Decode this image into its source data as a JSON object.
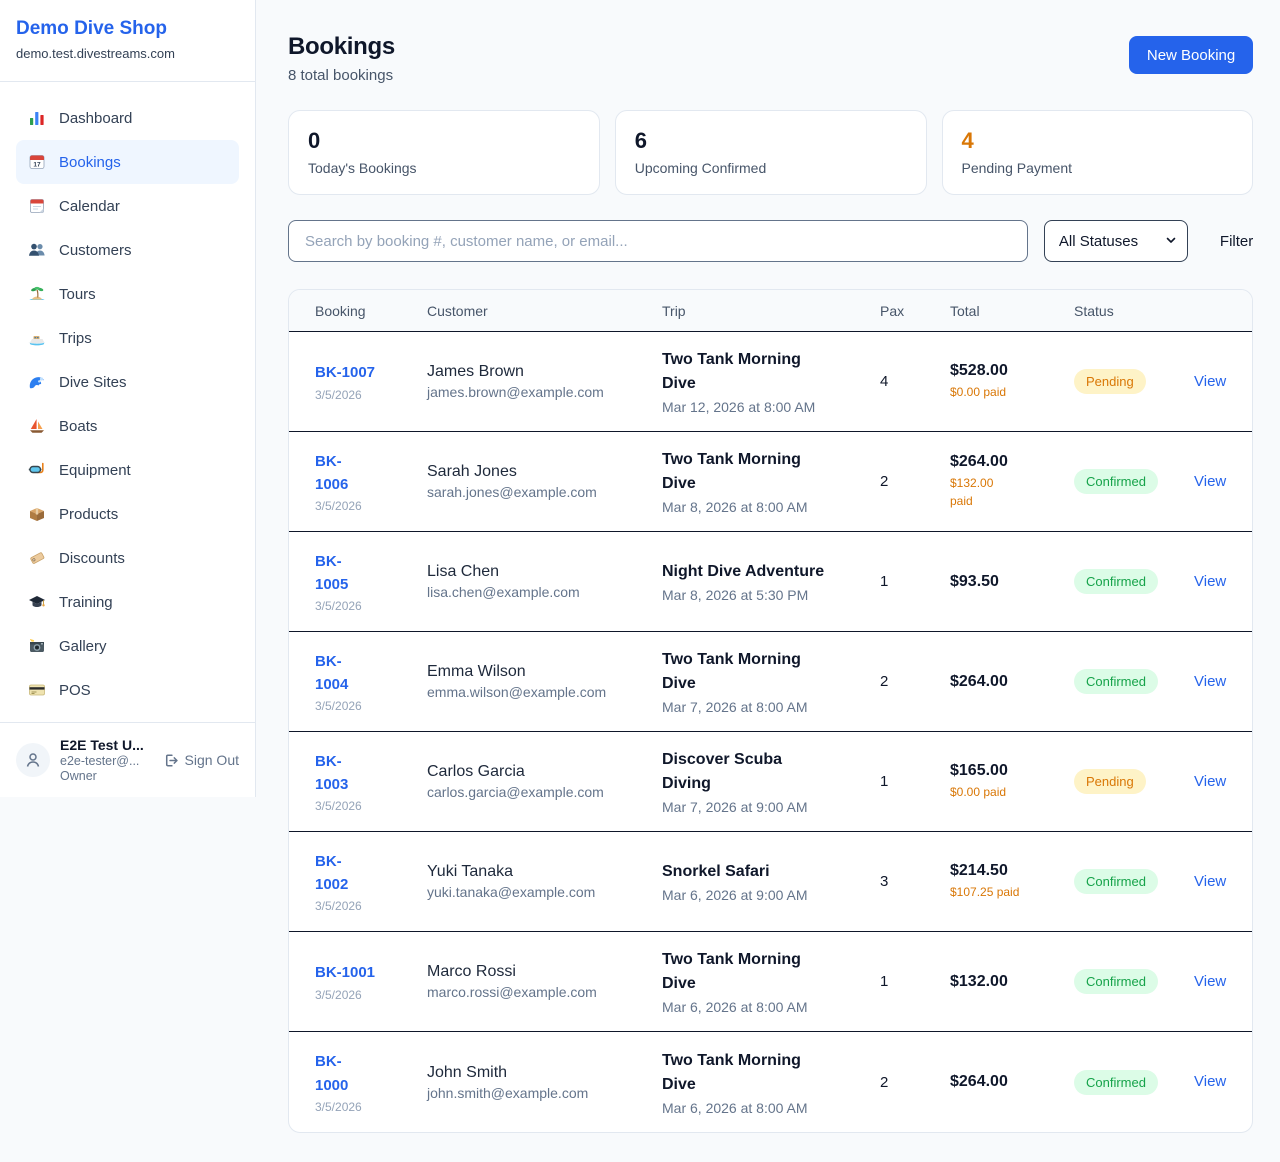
{
  "sidebar": {
    "shop_name": "Demo Dive Shop",
    "domain": "demo.test.divestreams.com",
    "items": [
      {
        "label": "Dashboard",
        "icon": "bar-chart-icon",
        "active": false
      },
      {
        "label": "Bookings",
        "icon": "calendar-date-icon",
        "active": true
      },
      {
        "label": "Calendar",
        "icon": "calendar-icon",
        "active": false
      },
      {
        "label": "Customers",
        "icon": "people-icon",
        "active": false
      },
      {
        "label": "Tours",
        "icon": "island-icon",
        "active": false
      },
      {
        "label": "Trips",
        "icon": "motorboat-icon",
        "active": false
      },
      {
        "label": "Dive Sites",
        "icon": "wave-icon",
        "active": false
      },
      {
        "label": "Boats",
        "icon": "sailboat-icon",
        "active": false
      },
      {
        "label": "Equipment",
        "icon": "diving-mask-icon",
        "active": false
      },
      {
        "label": "Products",
        "icon": "package-icon",
        "active": false
      },
      {
        "label": "Discounts",
        "icon": "tag-icon",
        "active": false
      },
      {
        "label": "Training",
        "icon": "graduation-cap-icon",
        "active": false
      },
      {
        "label": "Gallery",
        "icon": "camera-icon",
        "active": false
      },
      {
        "label": "POS",
        "icon": "credit-card-icon",
        "active": false
      }
    ],
    "user": {
      "name": "E2E Test U...",
      "email": "e2e-tester@...",
      "role": "Owner",
      "sign_out_label": "Sign Out"
    }
  },
  "header": {
    "title": "Bookings",
    "subtitle": "8 total bookings",
    "new_booking_label": "New Booking"
  },
  "stats": [
    {
      "value": "0",
      "label": "Today's Bookings",
      "highlight": false
    },
    {
      "value": "6",
      "label": "Upcoming Confirmed",
      "highlight": false
    },
    {
      "value": "4",
      "label": "Pending Payment",
      "highlight": true
    }
  ],
  "filters": {
    "search_placeholder": "Search by booking #, customer name, or email...",
    "status_selected": "All Statuses",
    "filter_label": "Filter"
  },
  "table": {
    "columns": [
      "Booking",
      "Customer",
      "Trip",
      "Pax",
      "Total",
      "Status"
    ],
    "view_label": "View",
    "rows": [
      {
        "id": "BK-1007",
        "id_wrap": false,
        "date": "3/5/2026",
        "customer": "James Brown",
        "email": "james.brown@example.com",
        "trip": "Two Tank Morning Dive",
        "trip_time": "Mar 12, 2026 at 8:00 AM",
        "pax": "4",
        "total": "$528.00",
        "paid": "$0.00 paid",
        "paid_wrap": false,
        "status": "Pending"
      },
      {
        "id": "BK-1006",
        "id_wrap": true,
        "date": "3/5/2026",
        "customer": "Sarah Jones",
        "email": "sarah.jones@example.com",
        "trip": "Two Tank Morning Dive",
        "trip_time": "Mar 8, 2026 at 8:00 AM",
        "pax": "2",
        "total": "$264.00",
        "paid": "$132.00 paid",
        "paid_wrap": true,
        "status": "Confirmed"
      },
      {
        "id": "BK-1005",
        "id_wrap": true,
        "date": "3/5/2026",
        "customer": "Lisa Chen",
        "email": "lisa.chen@example.com",
        "trip": "Night Dive Adventure",
        "trip_time": "Mar 8, 2026 at 5:30 PM",
        "pax": "1",
        "total": "$93.50",
        "paid": null,
        "paid_wrap": false,
        "status": "Confirmed"
      },
      {
        "id": "BK-1004",
        "id_wrap": true,
        "date": "3/5/2026",
        "customer": "Emma Wilson",
        "email": "emma.wilson@example.com",
        "trip": "Two Tank Morning Dive",
        "trip_time": "Mar 7, 2026 at 8:00 AM",
        "pax": "2",
        "total": "$264.00",
        "paid": null,
        "paid_wrap": false,
        "status": "Confirmed"
      },
      {
        "id": "BK-1003",
        "id_wrap": true,
        "date": "3/5/2026",
        "customer": "Carlos Garcia",
        "email": "carlos.garcia@example.com",
        "trip": "Discover Scuba Diving",
        "trip_time": "Mar 7, 2026 at 9:00 AM",
        "pax": "1",
        "total": "$165.00",
        "paid": "$0.00 paid",
        "paid_wrap": false,
        "status": "Pending"
      },
      {
        "id": "BK-1002",
        "id_wrap": true,
        "date": "3/5/2026",
        "customer": "Yuki Tanaka",
        "email": "yuki.tanaka@example.com",
        "trip": "Snorkel Safari",
        "trip_time": "Mar 6, 2026 at 9:00 AM",
        "pax": "3",
        "total": "$214.50",
        "paid": "$107.25 paid",
        "paid_wrap": false,
        "status": "Confirmed"
      },
      {
        "id": "BK-1001",
        "id_wrap": false,
        "date": "3/5/2026",
        "customer": "Marco Rossi",
        "email": "marco.rossi@example.com",
        "trip": "Two Tank Morning Dive",
        "trip_time": "Mar 6, 2026 at 8:00 AM",
        "pax": "1",
        "total": "$132.00",
        "paid": null,
        "paid_wrap": false,
        "status": "Confirmed"
      },
      {
        "id": "BK-1000",
        "id_wrap": true,
        "date": "3/5/2026",
        "customer": "John Smith",
        "email": "john.smith@example.com",
        "trip": "Two Tank Morning Dive",
        "trip_time": "Mar 6, 2026 at 8:00 AM",
        "pax": "2",
        "total": "$264.00",
        "paid": null,
        "paid_wrap": false,
        "status": "Confirmed"
      }
    ]
  },
  "colors": {
    "accent_blue": "#2563eb",
    "pending_text": "#d97706",
    "pending_bg": "#fef3c7",
    "confirmed_text": "#16a34a",
    "confirmed_bg": "#dcfce7",
    "dark_divider": "#0f172a",
    "page_bg": "#f8fafc"
  }
}
